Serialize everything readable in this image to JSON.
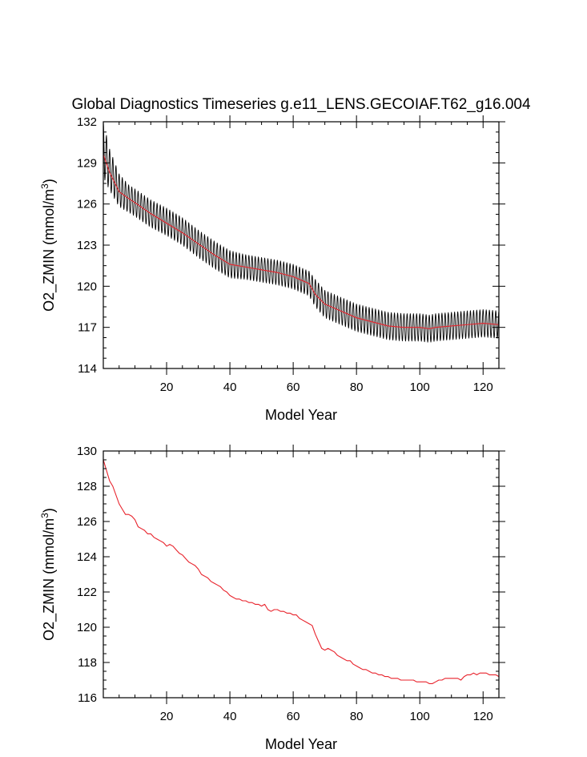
{
  "chart_data": [
    {
      "type": "line",
      "title": "Global Diagnostics Timeseries g.e11_LENS.GECOIAF.T62_g16.004",
      "xlabel": "Model Year",
      "ylabel": "O2_ZMIN (mmol/m",
      "ylabel_superscript": "3",
      "ylabel_suffix": ")",
      "xlim": [
        0,
        125
      ],
      "ylim": [
        114,
        132
      ],
      "xticks": [
        20,
        40,
        60,
        80,
        100,
        120
      ],
      "yticks": [
        114,
        117,
        120,
        123,
        126,
        129,
        132
      ],
      "grid": false,
      "series": [
        {
          "color": "#000000",
          "style": "monthly",
          "base_x": [
            0,
            2,
            5,
            8,
            10,
            15,
            20,
            25,
            30,
            35,
            40,
            45,
            50,
            55,
            60,
            65,
            67,
            70,
            75,
            80,
            85,
            90,
            95,
            100,
            103,
            105,
            110,
            115,
            120,
            125
          ],
          "base_y": [
            130.0,
            128.5,
            127.0,
            126.4,
            126.1,
            125.3,
            124.7,
            124.0,
            123.1,
            122.3,
            121.6,
            121.4,
            121.2,
            121.0,
            120.7,
            120.2,
            119.5,
            118.7,
            118.2,
            117.7,
            117.4,
            117.1,
            117.0,
            117.0,
            116.9,
            117.0,
            117.1,
            117.2,
            117.3,
            117.2
          ],
          "amplitude": [
            2.0,
            1.5,
            1.2,
            1.0,
            1.0,
            1.0,
            1.0,
            1.0,
            1.0,
            1.0,
            1.0,
            0.9,
            0.9,
            0.9,
            0.9,
            0.9,
            1.0,
            1.0,
            1.0,
            1.0,
            1.0,
            1.0,
            1.0,
            1.0,
            1.0,
            1.0,
            1.0,
            1.0,
            1.0,
            1.0
          ]
        },
        {
          "color": "#e8222b",
          "style": "annual",
          "x": [
            0,
            2,
            5,
            8,
            10,
            15,
            20,
            25,
            30,
            35,
            40,
            45,
            50,
            55,
            60,
            65,
            67,
            70,
            75,
            80,
            85,
            90,
            95,
            100,
            103,
            105,
            110,
            115,
            120,
            125
          ],
          "y": [
            129.6,
            128.3,
            126.9,
            126.4,
            126.1,
            125.3,
            124.6,
            123.9,
            123.1,
            122.3,
            121.6,
            121.4,
            121.2,
            121.0,
            120.7,
            120.2,
            119.4,
            118.7,
            118.2,
            117.7,
            117.4,
            117.1,
            117.0,
            117.0,
            116.9,
            117.0,
            117.1,
            117.2,
            117.3,
            117.2
          ]
        }
      ]
    },
    {
      "type": "line",
      "title": "",
      "xlabel": "Model Year",
      "ylabel": "O2_ZMIN (mmol/m",
      "ylabel_superscript": "3",
      "ylabel_suffix": ")",
      "xlim": [
        0,
        125
      ],
      "ylim": [
        116,
        130
      ],
      "xticks": [
        20,
        40,
        60,
        80,
        100,
        120
      ],
      "yticks": [
        116,
        118,
        120,
        122,
        124,
        126,
        128,
        130
      ],
      "grid": false,
      "series": [
        {
          "color": "#e8222b",
          "style": "annual",
          "x": [
            0,
            1,
            2,
            3,
            4,
            5,
            6,
            7,
            8,
            9,
            10,
            11,
            12,
            13,
            14,
            15,
            16,
            17,
            18,
            19,
            20,
            21,
            22,
            23,
            24,
            25,
            26,
            27,
            28,
            29,
            30,
            31,
            32,
            33,
            34,
            35,
            36,
            37,
            38,
            39,
            40,
            41,
            42,
            43,
            44,
            45,
            46,
            47,
            48,
            49,
            50,
            51,
            52,
            53,
            54,
            55,
            56,
            57,
            58,
            59,
            60,
            61,
            62,
            63,
            64,
            65,
            66,
            67,
            68,
            69,
            70,
            71,
            72,
            73,
            74,
            75,
            76,
            77,
            78,
            79,
            80,
            81,
            82,
            83,
            84,
            85,
            86,
            87,
            88,
            89,
            90,
            91,
            92,
            93,
            94,
            95,
            96,
            97,
            98,
            99,
            100,
            101,
            102,
            103,
            104,
            105,
            106,
            107,
            108,
            109,
            110,
            111,
            112,
            113,
            114,
            115,
            116,
            117,
            118,
            119,
            120,
            121,
            122,
            123,
            124,
            125
          ],
          "y": [
            129.5,
            128.9,
            128.3,
            128.0,
            127.5,
            127.0,
            126.7,
            126.4,
            126.4,
            126.3,
            126.1,
            125.7,
            125.6,
            125.5,
            125.3,
            125.3,
            125.1,
            125.0,
            124.9,
            124.8,
            124.6,
            124.7,
            124.6,
            124.4,
            124.2,
            124.1,
            123.9,
            123.7,
            123.6,
            123.5,
            123.3,
            123.0,
            122.9,
            122.8,
            122.6,
            122.5,
            122.4,
            122.3,
            122.1,
            122.0,
            121.8,
            121.7,
            121.6,
            121.6,
            121.5,
            121.5,
            121.4,
            121.4,
            121.3,
            121.3,
            121.2,
            121.3,
            121.0,
            120.9,
            121.0,
            121.0,
            120.9,
            120.9,
            120.8,
            120.8,
            120.7,
            120.7,
            120.5,
            120.4,
            120.3,
            120.2,
            120.1,
            119.6,
            119.2,
            118.8,
            118.7,
            118.8,
            118.7,
            118.6,
            118.4,
            118.3,
            118.2,
            118.1,
            118.1,
            117.9,
            117.8,
            117.7,
            117.6,
            117.6,
            117.5,
            117.4,
            117.4,
            117.3,
            117.3,
            117.2,
            117.2,
            117.1,
            117.1,
            117.1,
            117.0,
            117.0,
            117.0,
            117.0,
            117.0,
            116.9,
            116.9,
            116.9,
            116.9,
            116.8,
            116.8,
            116.9,
            117.0,
            117.0,
            117.1,
            117.1,
            117.1,
            117.1,
            117.1,
            117.0,
            117.2,
            117.3,
            117.3,
            117.4,
            117.3,
            117.4,
            117.4,
            117.4,
            117.3,
            117.3,
            117.3,
            117.2
          ]
        }
      ]
    }
  ]
}
